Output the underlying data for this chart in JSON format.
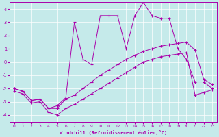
{
  "xlabel": "Windchill (Refroidissement éolien,°C)",
  "background_color": "#c5eaea",
  "line_color": "#aa00aa",
  "grid_color": "#ffffff",
  "xlim": [
    -0.5,
    23.5
  ],
  "ylim": [
    -4.5,
    4.5
  ],
  "xticks": [
    0,
    1,
    2,
    3,
    4,
    5,
    6,
    7,
    8,
    9,
    10,
    11,
    12,
    13,
    14,
    15,
    16,
    17,
    18,
    19,
    20,
    21,
    22,
    23
  ],
  "yticks": [
    -4,
    -3,
    -2,
    -1,
    0,
    1,
    2,
    3,
    4
  ],
  "line_main": [
    -2.0,
    -2.2,
    -2.9,
    -2.8,
    -3.5,
    -3.3,
    -2.7,
    3.0,
    0.2,
    -0.2,
    3.5,
    3.5,
    3.5,
    1.0,
    3.5,
    4.5,
    3.5,
    3.3,
    3.3,
    1.0,
    0.2,
    -1.5,
    -1.5,
    -2.0
  ],
  "line_mid": [
    -2.0,
    -2.2,
    -2.9,
    -2.8,
    -3.5,
    -3.5,
    -2.8,
    -2.5,
    -2.0,
    -1.5,
    -1.0,
    -0.6,
    -0.2,
    0.2,
    0.5,
    0.8,
    1.0,
    1.2,
    1.3,
    1.4,
    1.5,
    0.9,
    -1.3,
    -1.7
  ],
  "line_low": [
    -2.2,
    -2.4,
    -3.1,
    -3.0,
    -3.8,
    -4.0,
    -3.5,
    -3.2,
    -2.8,
    -2.4,
    -2.0,
    -1.6,
    -1.2,
    -0.8,
    -0.4,
    0.0,
    0.2,
    0.4,
    0.5,
    0.6,
    0.7,
    -2.5,
    -2.3,
    -2.1
  ]
}
